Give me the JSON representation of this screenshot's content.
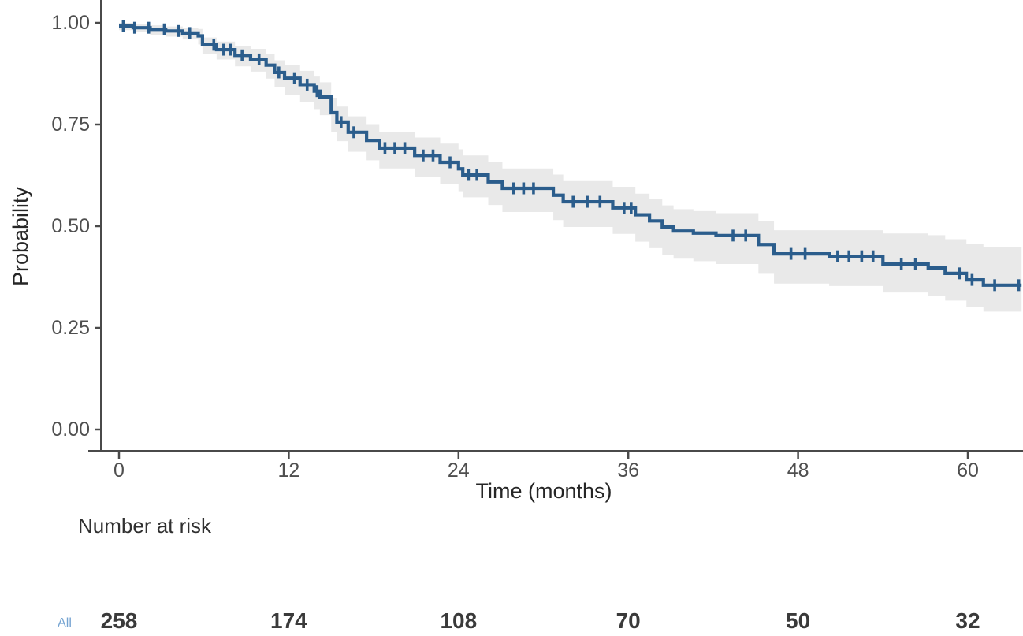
{
  "figure": {
    "kind": "kaplan-meier-survival-figure"
  },
  "chart_data": {
    "type": "line",
    "subtype": "kaplan_meier_step",
    "title": "",
    "xlabel": "Time (months)",
    "ylabel": "Probability",
    "xlim": [
      0,
      64
    ],
    "ylim": [
      0.0,
      1.0
    ],
    "x_ticks": [
      0,
      12,
      24,
      36,
      48,
      60
    ],
    "x_tick_labels": [
      "0",
      "12",
      "24",
      "36",
      "48",
      "60"
    ],
    "y_ticks": [
      0.0,
      0.25,
      0.5,
      0.75,
      1.0
    ],
    "y_tick_labels": [
      "0.00",
      "0.25",
      "0.50",
      "0.75",
      "1.00"
    ],
    "grid": false,
    "legend_position": "none",
    "series": [
      {
        "name": "All",
        "color": "#2b5d8c",
        "ci_color": "#e9e9e9",
        "end_time": 63.8,
        "steps_format": [
          "time_months",
          "survival",
          "ci_lower",
          "ci_upper"
        ],
        "steps": [
          [
            0.0,
            0.992,
            0.982,
            1.0
          ],
          [
            1.0,
            0.988,
            0.977,
            0.997
          ],
          [
            2.2,
            0.984,
            0.971,
            0.994
          ],
          [
            3.3,
            0.98,
            0.966,
            0.991
          ],
          [
            4.5,
            0.975,
            0.959,
            0.988
          ],
          [
            5.6,
            0.968,
            0.947,
            0.985
          ],
          [
            5.9,
            0.946,
            0.924,
            0.964
          ],
          [
            6.9,
            0.934,
            0.91,
            0.954
          ],
          [
            8.2,
            0.92,
            0.893,
            0.942
          ],
          [
            9.3,
            0.91,
            0.88,
            0.936
          ],
          [
            10.4,
            0.896,
            0.863,
            0.924
          ],
          [
            11.0,
            0.878,
            0.843,
            0.908
          ],
          [
            11.7,
            0.864,
            0.823,
            0.896
          ],
          [
            12.8,
            0.848,
            0.805,
            0.882
          ],
          [
            13.8,
            0.832,
            0.788,
            0.868
          ],
          [
            14.2,
            0.818,
            0.773,
            0.854
          ],
          [
            15.0,
            0.779,
            0.732,
            0.816
          ],
          [
            15.4,
            0.756,
            0.709,
            0.794
          ],
          [
            16.2,
            0.731,
            0.683,
            0.77
          ],
          [
            17.5,
            0.711,
            0.662,
            0.751
          ],
          [
            18.4,
            0.692,
            0.642,
            0.732
          ],
          [
            20.9,
            0.674,
            0.622,
            0.718
          ],
          [
            22.7,
            0.657,
            0.604,
            0.703
          ],
          [
            24.0,
            0.641,
            0.586,
            0.689
          ],
          [
            24.3,
            0.626,
            0.571,
            0.674
          ],
          [
            26.1,
            0.609,
            0.552,
            0.658
          ],
          [
            27.1,
            0.593,
            0.535,
            0.642
          ],
          [
            30.7,
            0.576,
            0.515,
            0.627
          ],
          [
            31.4,
            0.56,
            0.498,
            0.611
          ],
          [
            34.9,
            0.545,
            0.481,
            0.597
          ],
          [
            36.5,
            0.528,
            0.462,
            0.58
          ],
          [
            37.5,
            0.513,
            0.446,
            0.566
          ],
          [
            38.4,
            0.498,
            0.43,
            0.551
          ],
          [
            39.2,
            0.488,
            0.42,
            0.542
          ],
          [
            40.6,
            0.483,
            0.414,
            0.537
          ],
          [
            42.2,
            0.477,
            0.407,
            0.532
          ],
          [
            45.2,
            0.455,
            0.383,
            0.512
          ],
          [
            46.3,
            0.432,
            0.359,
            0.49
          ],
          [
            50.2,
            0.426,
            0.353,
            0.49
          ],
          [
            54.0,
            0.407,
            0.337,
            0.482
          ],
          [
            57.2,
            0.397,
            0.329,
            0.478
          ],
          [
            58.4,
            0.384,
            0.317,
            0.468
          ],
          [
            59.9,
            0.368,
            0.301,
            0.456
          ],
          [
            61.1,
            0.355,
            0.29,
            0.448
          ]
        ],
        "censor_times": [
          0.3,
          1.1,
          2.1,
          3.2,
          4.2,
          5.0,
          6.7,
          7.4,
          7.9,
          8.7,
          9.9,
          11.3,
          12.4,
          13.3,
          14.0,
          15.7,
          16.6,
          18.8,
          19.5,
          20.2,
          21.5,
          22.2,
          23.4,
          24.7,
          25.3,
          27.9,
          28.6,
          29.3,
          32.1,
          33.1,
          34.0,
          35.7,
          36.2,
          43.4,
          44.3,
          47.5,
          48.5,
          50.8,
          51.6,
          52.5,
          53.3,
          55.3,
          56.3,
          59.4,
          60.3,
          61.9,
          63.6
        ]
      }
    ]
  },
  "risk_table": {
    "title": "Number at risk",
    "strata_label": "All",
    "strata_color": "#74a3d1",
    "times": [
      0,
      12,
      24,
      36,
      48,
      60
    ],
    "counts": [
      "258",
      "174",
      "108",
      "70",
      "50",
      "32"
    ]
  },
  "colors": {
    "curve": "#2b5d8c",
    "confidence_band": "#e9e9e9",
    "axis_line": "#4a4a4a",
    "tick_mark": "#4a4a4a",
    "tick_label": "#4f4f4f",
    "axis_title": "#262626",
    "background": "#ffffff"
  }
}
